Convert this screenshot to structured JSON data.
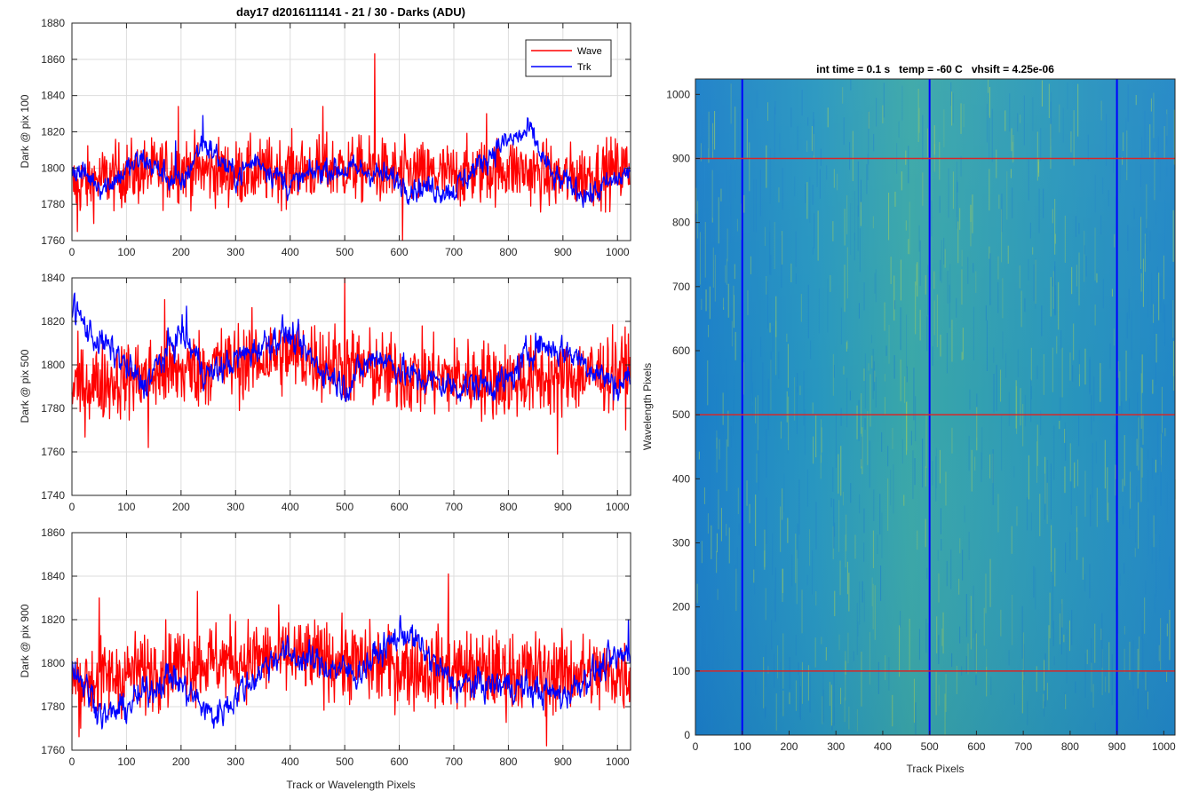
{
  "figure": {
    "colors": {
      "wave": "#ff0000",
      "trk": "#0000ff",
      "axis": "#262626",
      "grid": "#dddddd",
      "heat_low": "#1e83c8",
      "heat_high": "#8fc66a"
    }
  },
  "chart_data": [
    {
      "type": "line",
      "title": "day17 d2016111141 - 21 / 30 - Darks (ADU)",
      "xlabel": "",
      "ylabel": "Dark @ pix 100",
      "xlim": [
        0,
        1024
      ],
      "ylim": [
        1760,
        1880
      ],
      "xticks": [
        "0",
        "100",
        "200",
        "300",
        "400",
        "500",
        "600",
        "700",
        "800",
        "900",
        "1000"
      ],
      "yticks": [
        "1760",
        "1780",
        "1800",
        "1820",
        "1840",
        "1860",
        "1880"
      ],
      "grid": true,
      "legend_position": "top-right",
      "series": [
        {
          "name": "Wave",
          "color": "#ff0000",
          "base": 1797,
          "spread": 10,
          "profile": [
            [
              0,
              1790
            ],
            [
              100,
              1797
            ],
            [
              200,
              1800
            ],
            [
              300,
              1797
            ],
            [
              400,
              1799
            ],
            [
              500,
              1800
            ],
            [
              600,
              1797
            ],
            [
              700,
              1796
            ],
            [
              800,
              1800
            ],
            [
              900,
              1794
            ],
            [
              1024,
              1800
            ]
          ],
          "spikes": [
            [
              555,
              1863
            ],
            [
              195,
              1834
            ],
            [
              460,
              1834
            ],
            [
              10,
              1765
            ],
            [
              606,
              1760
            ],
            [
              760,
              1830
            ]
          ]
        },
        {
          "name": "Trk",
          "color": "#0000ff",
          "base": 1795,
          "spread": 6,
          "profile": [
            [
              0,
              1800
            ],
            [
              60,
              1790
            ],
            [
              130,
              1805
            ],
            [
              200,
              1790
            ],
            [
              240,
              1815
            ],
            [
              300,
              1795
            ],
            [
              340,
              1805
            ],
            [
              400,
              1790
            ],
            [
              460,
              1800
            ],
            [
              550,
              1798
            ],
            [
              620,
              1790
            ],
            [
              700,
              1788
            ],
            [
              780,
              1812
            ],
            [
              840,
              1820
            ],
            [
              880,
              1795
            ],
            [
              950,
              1785
            ],
            [
              1024,
              1798
            ]
          ],
          "spikes": [
            [
              190,
              1815
            ],
            [
              240,
              1829
            ]
          ]
        }
      ]
    },
    {
      "type": "line",
      "title": "",
      "xlabel": "",
      "ylabel": "Dark @ pix 500",
      "xlim": [
        0,
        1024
      ],
      "ylim": [
        1740,
        1840
      ],
      "xticks": [
        "0",
        "100",
        "200",
        "300",
        "400",
        "500",
        "600",
        "700",
        "800",
        "900",
        "1000"
      ],
      "yticks": [
        "1740",
        "1760",
        "1780",
        "1800",
        "1820",
        "1840"
      ],
      "grid": true,
      "legend_position": "none",
      "series": [
        {
          "name": "Wave",
          "color": "#ff0000",
          "base": 1797,
          "spread": 10,
          "profile": [
            [
              0,
              1790
            ],
            [
              200,
              1797
            ],
            [
              400,
              1805
            ],
            [
              600,
              1795
            ],
            [
              800,
              1793
            ],
            [
              1024,
              1797
            ]
          ],
          "spikes": [
            [
              500,
              1840
            ],
            [
              170,
              1830
            ],
            [
              890,
              1759
            ],
            [
              140,
              1762
            ]
          ]
        },
        {
          "name": "Trk",
          "color": "#0000ff",
          "base": 1797,
          "spread": 6,
          "profile": [
            [
              0,
              1828
            ],
            [
              30,
              1815
            ],
            [
              80,
              1805
            ],
            [
              130,
              1790
            ],
            [
              200,
              1815
            ],
            [
              250,
              1795
            ],
            [
              390,
              1815
            ],
            [
              450,
              1800
            ],
            [
              500,
              1790
            ],
            [
              560,
              1805
            ],
            [
              620,
              1795
            ],
            [
              700,
              1790
            ],
            [
              800,
              1792
            ],
            [
              850,
              1810
            ],
            [
              920,
              1805
            ],
            [
              1000,
              1790
            ],
            [
              1024,
              1795
            ]
          ],
          "spikes": [
            [
              5,
              1833
            ],
            [
              210,
              1827
            ]
          ]
        }
      ]
    },
    {
      "type": "line",
      "title": "",
      "xlabel": "Track or Wavelength Pixels",
      "ylabel": "Dark @ pix 900",
      "xlim": [
        0,
        1024
      ],
      "ylim": [
        1760,
        1860
      ],
      "xticks": [
        "0",
        "100",
        "200",
        "300",
        "400",
        "500",
        "600",
        "700",
        "800",
        "900",
        "1000"
      ],
      "yticks": [
        "1760",
        "1780",
        "1800",
        "1820",
        "1840",
        "1860"
      ],
      "grid": true,
      "legend_position": "none",
      "series": [
        {
          "name": "Wave",
          "color": "#ff0000",
          "base": 1797,
          "spread": 10,
          "profile": [
            [
              0,
              1790
            ],
            [
              200,
              1800
            ],
            [
              400,
              1803
            ],
            [
              600,
              1798
            ],
            [
              800,
              1796
            ],
            [
              1024,
              1795
            ]
          ],
          "spikes": [
            [
              690,
              1841
            ],
            [
              50,
              1830
            ],
            [
              230,
              1833
            ],
            [
              870,
              1762
            ]
          ]
        },
        {
          "name": "Trk",
          "color": "#0000ff",
          "base": 1795,
          "spread": 6,
          "profile": [
            [
              0,
              1800
            ],
            [
              60,
              1775
            ],
            [
              100,
              1780
            ],
            [
              180,
              1795
            ],
            [
              260,
              1775
            ],
            [
              300,
              1785
            ],
            [
              380,
              1805
            ],
            [
              450,
              1800
            ],
            [
              520,
              1795
            ],
            [
              610,
              1815
            ],
            [
              700,
              1790
            ],
            [
              800,
              1790
            ],
            [
              900,
              1785
            ],
            [
              950,
              1795
            ],
            [
              1024,
              1805
            ]
          ],
          "spikes": [
            [
              1020,
              1820
            ]
          ]
        }
      ]
    },
    {
      "type": "heatmap",
      "title": "int time = 0.1 s   temp = -60 C   vhsift = 4.25e-06",
      "xlabel": "Track Pixels",
      "ylabel": "Wavelength Pixels",
      "xlim": [
        0,
        1024
      ],
      "ylim": [
        0,
        1024
      ],
      "xticks": [
        "0",
        "100",
        "200",
        "300",
        "400",
        "500",
        "600",
        "700",
        "800",
        "900",
        "1000"
      ],
      "yticks": [
        "0",
        "100",
        "200",
        "300",
        "400",
        "500",
        "600",
        "700",
        "800",
        "900",
        "1000"
      ],
      "vertical_markers": [
        100,
        500,
        900
      ],
      "horizontal_markers": [
        100,
        500,
        900
      ],
      "vertical_marker_color": "#0000ff",
      "horizontal_marker_color": "#d62728"
    }
  ]
}
